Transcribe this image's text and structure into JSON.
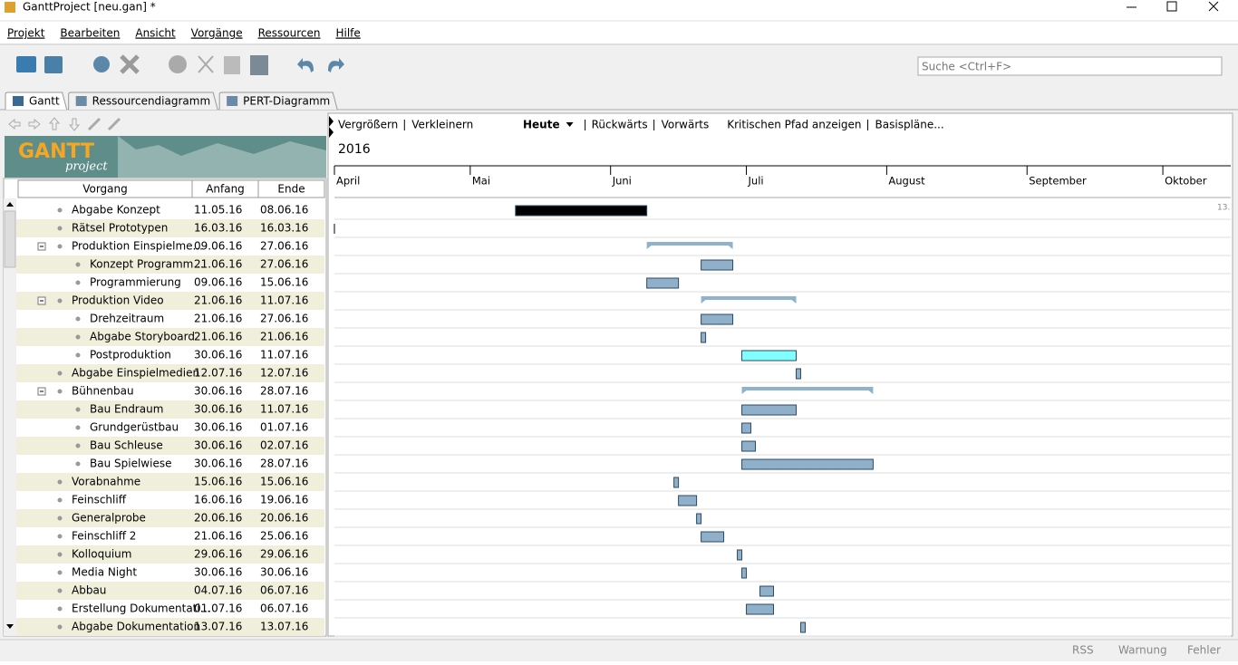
{
  "window": {
    "title": "GanttProject [neu.gan] *"
  },
  "menu": [
    "Projekt",
    "Bearbeiten",
    "Ansicht",
    "Vorgänge",
    "Ressourcen",
    "Hilfe"
  ],
  "search": "Suche <Ctrl+F>",
  "tabs": [
    "Gantt",
    "Ressourcendiagramm",
    "PERT-Diagramm"
  ],
  "logo": {
    "main": "GANTT",
    "sub": "project"
  },
  "chart_toolbar": {
    "zoom_in": "Vergrößern",
    "zoom_out": "Verkleinern",
    "today": "Heute",
    "back": "Rückwärts",
    "forward": "Vorwärts",
    "critical": "Kritischen Pfad anzeigen",
    "baselines": "Basispläne..."
  },
  "timeline": {
    "year": "2016",
    "months": [
      "April",
      "Mai",
      "Juni",
      "Juli",
      "August",
      "September",
      "Oktober"
    ],
    "xlim": [
      "2016-04-01",
      "2016-10-16"
    ],
    "corner": "13."
  },
  "table": {
    "columns": [
      "Vorgang",
      "Anfang",
      "Ende"
    ],
    "rows": [
      {
        "name": "Abgabe Konzept",
        "start": "11.05.16",
        "end": "08.06.16",
        "level": 0,
        "color": "#000000"
      },
      {
        "name": "Rätsel Prototypen",
        "start": "16.03.16",
        "end": "16.03.16",
        "level": 0
      },
      {
        "name": "Produktion Einspielme...",
        "start": "09.06.16",
        "end": "27.06.16",
        "level": 0,
        "summary": true
      },
      {
        "name": "Konzept Programm...",
        "start": "21.06.16",
        "end": "27.06.16",
        "level": 1
      },
      {
        "name": "Programmierung",
        "start": "09.06.16",
        "end": "15.06.16",
        "level": 1
      },
      {
        "name": "Produktion Video",
        "start": "21.06.16",
        "end": "11.07.16",
        "level": 0,
        "summary": true
      },
      {
        "name": "Drehzeitraum",
        "start": "21.06.16",
        "end": "27.06.16",
        "level": 1
      },
      {
        "name": "Abgabe Storyboard",
        "start": "21.06.16",
        "end": "21.06.16",
        "level": 1
      },
      {
        "name": "Postproduktion",
        "start": "30.06.16",
        "end": "11.07.16",
        "level": 1,
        "color": "#80ffff"
      },
      {
        "name": "Abgabe Einspielmedien",
        "start": "12.07.16",
        "end": "12.07.16",
        "level": 0
      },
      {
        "name": "Bühnenbau",
        "start": "30.06.16",
        "end": "28.07.16",
        "level": 0,
        "summary": true
      },
      {
        "name": "Bau Endraum",
        "start": "30.06.16",
        "end": "11.07.16",
        "level": 1
      },
      {
        "name": "Grundgerüstbau",
        "start": "30.06.16",
        "end": "01.07.16",
        "level": 1
      },
      {
        "name": "Bau Schleuse",
        "start": "30.06.16",
        "end": "02.07.16",
        "level": 1
      },
      {
        "name": "Bau Spielwiese",
        "start": "30.06.16",
        "end": "28.07.16",
        "level": 1
      },
      {
        "name": "Vorabnahme",
        "start": "15.06.16",
        "end": "15.06.16",
        "level": 0
      },
      {
        "name": "Feinschliff",
        "start": "16.06.16",
        "end": "19.06.16",
        "level": 0
      },
      {
        "name": "Generalprobe",
        "start": "20.06.16",
        "end": "20.06.16",
        "level": 0
      },
      {
        "name": "Feinschliff 2",
        "start": "21.06.16",
        "end": "25.06.16",
        "level": 0
      },
      {
        "name": "Kolloquium",
        "start": "29.06.16",
        "end": "29.06.16",
        "level": 0
      },
      {
        "name": "Media Night",
        "start": "30.06.16",
        "end": "30.06.16",
        "level": 0
      },
      {
        "name": "Abbau",
        "start": "04.07.16",
        "end": "06.07.16",
        "level": 0
      },
      {
        "name": "Erstellung Dokumentati...",
        "start": "01.07.16",
        "end": "06.07.16",
        "level": 0
      },
      {
        "name": "Abgabe Dokumentation",
        "start": "13.07.16",
        "end": "13.07.16",
        "level": 0
      }
    ]
  },
  "status": [
    "RSS",
    "Warnung",
    "Fehler"
  ]
}
